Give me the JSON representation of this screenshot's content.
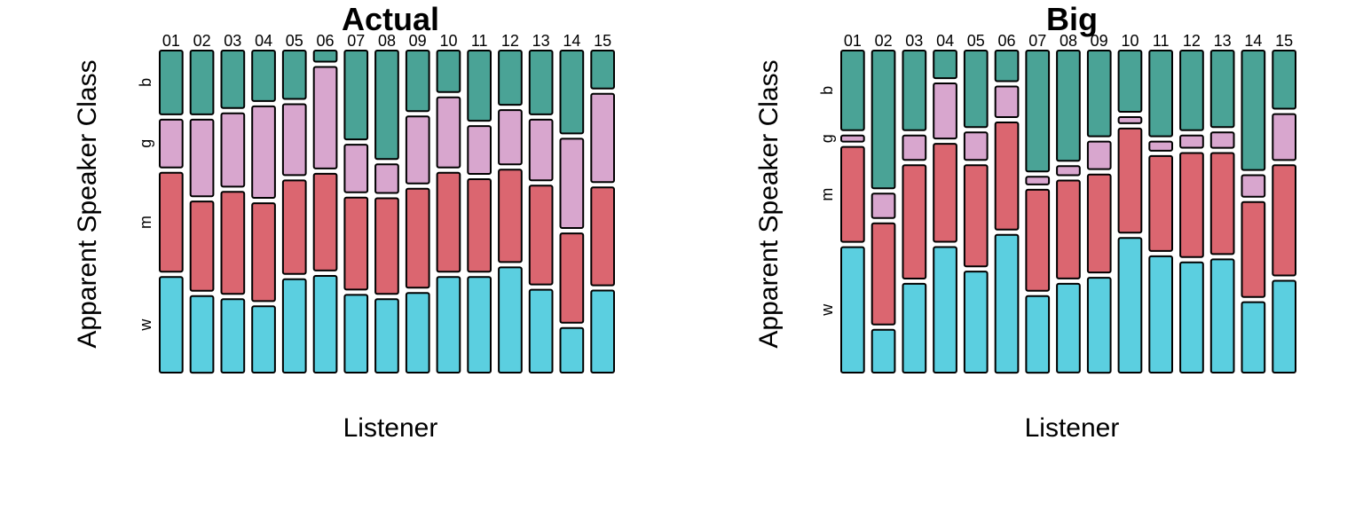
{
  "chart_data": [
    {
      "type": "mosaic",
      "title": "Actual",
      "xlabel": "Listener",
      "ylabel": "Apparent Speaker Class",
      "categories": [
        "01",
        "02",
        "03",
        "04",
        "05",
        "06",
        "07",
        "08",
        "09",
        "10",
        "11",
        "12",
        "13",
        "14",
        "15"
      ],
      "levels": [
        "w",
        "m",
        "g",
        "b"
      ],
      "stack_order": "bottom-to-top",
      "proportions": {
        "w": [
          0.3,
          0.24,
          0.23,
          0.21,
          0.29,
          0.305,
          0.245,
          0.23,
          0.25,
          0.3,
          0.3,
          0.33,
          0.26,
          0.14,
          0.26
        ],
        "m": [
          0.31,
          0.28,
          0.32,
          0.31,
          0.29,
          0.305,
          0.29,
          0.3,
          0.31,
          0.31,
          0.29,
          0.29,
          0.31,
          0.28,
          0.31
        ],
        "g": [
          0.15,
          0.24,
          0.23,
          0.29,
          0.22,
          0.32,
          0.15,
          0.09,
          0.21,
          0.22,
          0.15,
          0.17,
          0.19,
          0.28,
          0.28
        ],
        "b": [
          0.2,
          0.2,
          0.18,
          0.16,
          0.15,
          0.035,
          0.28,
          0.34,
          0.19,
          0.13,
          0.22,
          0.17,
          0.2,
          0.26,
          0.12
        ]
      },
      "colors": {
        "w": "#5bcfe0",
        "m": "#db6670",
        "g": "#d8a6ce",
        "b": "#4aa396"
      }
    },
    {
      "type": "mosaic",
      "title": "Big",
      "xlabel": "Listener",
      "ylabel": "Apparent Speaker Class",
      "categories": [
        "01",
        "02",
        "03",
        "04",
        "05",
        "06",
        "07",
        "08",
        "09",
        "10",
        "11",
        "12",
        "13",
        "14",
        "15"
      ],
      "levels": [
        "w",
        "m",
        "g",
        "b"
      ],
      "stack_order": "bottom-to-top",
      "proportions": {
        "w": [
          0.41,
          0.14,
          0.29,
          0.41,
          0.33,
          0.45,
          0.25,
          0.29,
          0.31,
          0.44,
          0.38,
          0.36,
          0.37,
          0.23,
          0.3
        ],
        "m": [
          0.31,
          0.33,
          0.37,
          0.32,
          0.33,
          0.35,
          0.33,
          0.32,
          0.32,
          0.34,
          0.31,
          0.34,
          0.33,
          0.31,
          0.36
        ],
        "g": [
          0.02,
          0.08,
          0.08,
          0.18,
          0.09,
          0.1,
          0.025,
          0.03,
          0.09,
          0.02,
          0.03,
          0.04,
          0.05,
          0.07,
          0.15
        ],
        "b": [
          0.26,
          0.45,
          0.26,
          0.09,
          0.25,
          0.1,
          0.395,
          0.36,
          0.28,
          0.2,
          0.28,
          0.26,
          0.25,
          0.39,
          0.19
        ]
      },
      "colors": {
        "w": "#5bcfe0",
        "m": "#db6670",
        "g": "#d8a6ce",
        "b": "#4aa396"
      }
    }
  ]
}
